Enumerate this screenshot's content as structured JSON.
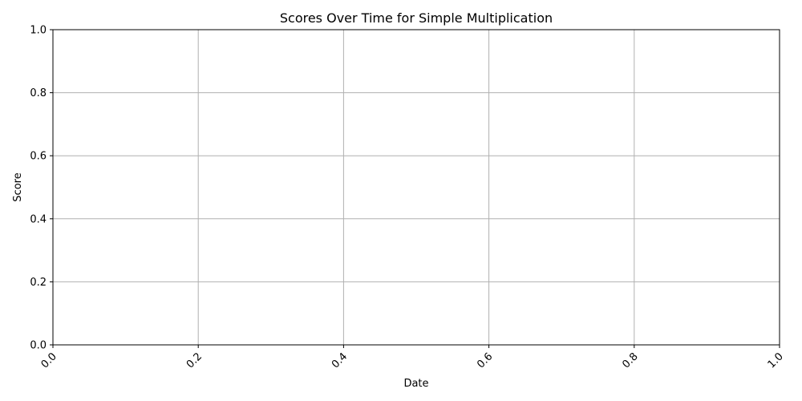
{
  "chart_data": {
    "type": "line",
    "title": "Scores Over Time for Simple Multiplication",
    "xlabel": "Date",
    "ylabel": "Score",
    "xlim": [
      0.0,
      1.0
    ],
    "ylim": [
      0.0,
      1.0
    ],
    "x_ticks": [
      "0.0",
      "0.2",
      "0.4",
      "0.6",
      "0.8",
      "1.0"
    ],
    "y_ticks": [
      "0.0",
      "0.2",
      "0.4",
      "0.6",
      "0.8",
      "1.0"
    ],
    "x_tick_rotation_deg": 45,
    "grid": true,
    "series": [],
    "colors": {
      "grid": "#b0b0b0",
      "axes": "#000000",
      "background": "#ffffff"
    }
  }
}
